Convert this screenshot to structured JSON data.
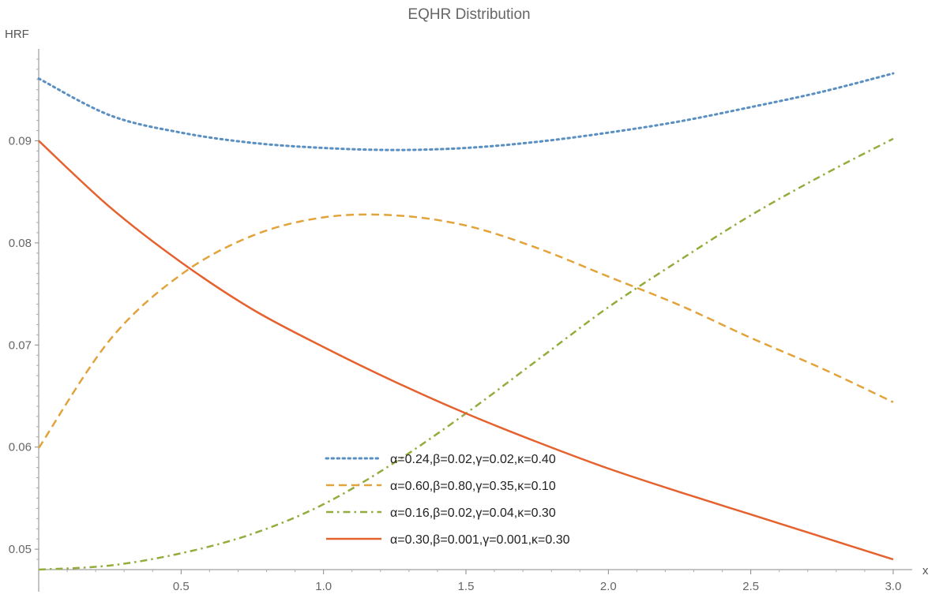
{
  "chart_data": {
    "type": "line",
    "title": "EQHR Distribution",
    "xlabel": "x",
    "ylabel": "HRF",
    "xlim": [
      0,
      3.0
    ],
    "ylim": [
      0.048,
      0.099
    ],
    "x_ticks": [
      0.5,
      1.0,
      1.5,
      2.0,
      2.5,
      3.0
    ],
    "x_tick_labels": [
      "0.5",
      "1.0",
      "1.5",
      "2.0",
      "2.5",
      "3.0"
    ],
    "y_ticks": [
      0.05,
      0.06,
      0.07,
      0.08,
      0.09
    ],
    "y_tick_labels": [
      "0.05",
      "0.06",
      "0.07",
      "0.08",
      "0.09"
    ],
    "grid": false,
    "legend_position": "bottom-center",
    "x": [
      0,
      0.25,
      0.5,
      0.75,
      1.0,
      1.25,
      1.5,
      1.75,
      2.0,
      2.25,
      2.5,
      2.75,
      3.0
    ],
    "series": [
      {
        "name": "α=0.24,β=0.02,γ=0.02,κ=0.40",
        "color": "#5A8FC2",
        "dash": "dotted",
        "values": [
          0.0961,
          0.0925,
          0.0908,
          0.0898,
          0.0893,
          0.0891,
          0.0893,
          0.0899,
          0.0908,
          0.0919,
          0.0933,
          0.0948,
          0.0966
        ]
      },
      {
        "name": "α=0.60,β=0.80,γ=0.35,κ=0.10",
        "color": "#E3A33B",
        "dash": "dashed",
        "values": [
          0.0599,
          0.0705,
          0.0769,
          0.0807,
          0.0825,
          0.0827,
          0.0817,
          0.0795,
          0.0767,
          0.0739,
          0.0707,
          0.0677,
          0.0644
        ]
      },
      {
        "name": "α=0.16,β=0.02,γ=0.04,κ=0.30",
        "color": "#93AD3C",
        "dash": "dashdot",
        "values": [
          0.048,
          0.0484,
          0.0496,
          0.0515,
          0.0544,
          0.0585,
          0.0633,
          0.0685,
          0.0737,
          0.0783,
          0.0827,
          0.0866,
          0.0902
        ]
      },
      {
        "name": "α=0.30,β=0.001,γ=0.001,κ=0.30",
        "color": "#E5622F",
        "dash": "solid",
        "values": [
          0.09,
          0.0835,
          0.0781,
          0.0735,
          0.0698,
          0.0664,
          0.0633,
          0.0605,
          0.0579,
          0.0556,
          0.0534,
          0.0512,
          0.049
        ]
      }
    ]
  }
}
